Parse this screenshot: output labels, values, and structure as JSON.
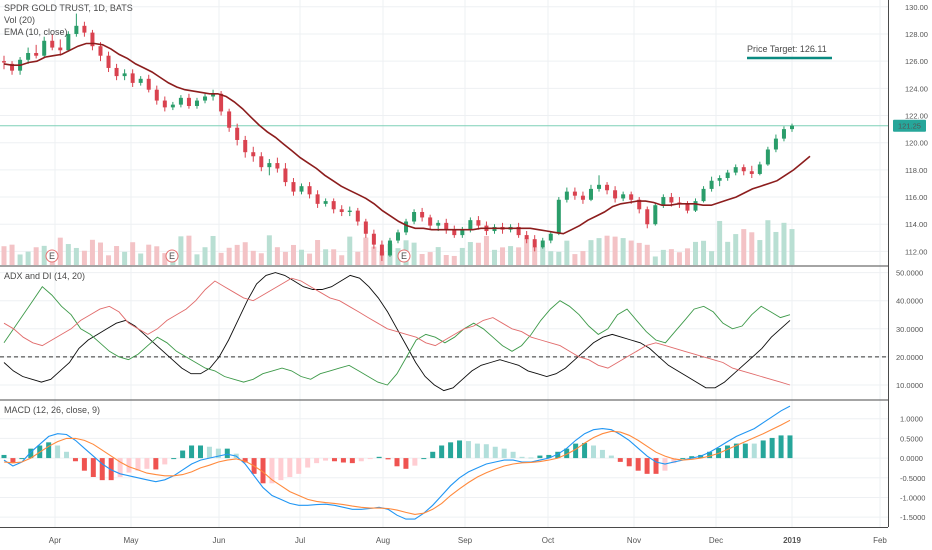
{
  "chart_data": {
    "type": "financial",
    "price_panel": {
      "legend": [
        "SPDR GOLD TRUST, 1D, BATS",
        "Vol (20)",
        "EMA (10, close)"
      ],
      "y_ticks": [
        "130.00",
        "128.00",
        "126.00",
        "124.00",
        "122.00",
        "120.00",
        "118.00",
        "116.00",
        "114.00",
        "112.00"
      ],
      "ylim": [
        111.0,
        130.5
      ],
      "last_price": 121.25,
      "last_price_label": "121.25",
      "price_target_label": "Price Target: 126.11",
      "price_target": 126.11,
      "earnings_marker": "E",
      "earnings_dates": [
        "Apr",
        "May",
        "Aug"
      ],
      "candles_ohlc": [
        [
          126.0,
          126.4,
          125.4,
          125.9
        ],
        [
          125.8,
          126.0,
          125.0,
          125.3
        ],
        [
          125.3,
          126.3,
          125.0,
          126.1
        ],
        [
          126.1,
          127.0,
          125.8,
          126.6
        ],
        [
          126.6,
          127.2,
          126.2,
          126.4
        ],
        [
          126.4,
          127.8,
          126.3,
          127.5
        ],
        [
          127.5,
          128.0,
          126.8,
          127.0
        ],
        [
          127.0,
          127.6,
          126.4,
          126.8
        ],
        [
          126.8,
          128.2,
          126.7,
          128.0
        ],
        [
          128.0,
          129.5,
          127.8,
          128.6
        ],
        [
          128.6,
          128.9,
          127.8,
          128.1
        ],
        [
          128.1,
          128.3,
          126.8,
          127.1
        ],
        [
          127.1,
          127.4,
          126.0,
          126.4
        ],
        [
          126.4,
          126.7,
          125.2,
          125.5
        ],
        [
          125.5,
          125.8,
          124.6,
          124.9
        ],
        [
          124.9,
          125.4,
          124.6,
          125.1
        ],
        [
          125.1,
          125.4,
          124.1,
          124.4
        ],
        [
          124.4,
          124.9,
          124.2,
          124.7
        ],
        [
          124.7,
          125.0,
          123.7,
          123.9
        ],
        [
          123.9,
          124.2,
          122.8,
          123.1
        ],
        [
          123.1,
          123.4,
          122.3,
          122.6
        ],
        [
          122.6,
          123.0,
          122.4,
          122.8
        ],
        [
          122.8,
          123.5,
          122.6,
          123.3
        ],
        [
          123.3,
          123.6,
          122.5,
          122.7
        ],
        [
          122.7,
          123.3,
          122.5,
          123.1
        ],
        [
          123.1,
          123.6,
          122.9,
          123.4
        ],
        [
          123.4,
          123.9,
          123.1,
          123.6
        ],
        [
          123.6,
          123.8,
          122.0,
          122.3
        ],
        [
          122.3,
          122.5,
          120.8,
          121.1
        ],
        [
          121.1,
          121.4,
          119.8,
          120.2
        ],
        [
          120.2,
          120.5,
          118.9,
          119.3
        ],
        [
          119.3,
          119.7,
          118.6,
          119.0
        ],
        [
          119.0,
          119.3,
          117.9,
          118.2
        ],
        [
          118.2,
          118.8,
          117.6,
          118.5
        ],
        [
          118.5,
          118.9,
          117.8,
          118.1
        ],
        [
          118.1,
          118.5,
          116.8,
          117.1
        ],
        [
          117.1,
          117.4,
          116.1,
          116.4
        ],
        [
          116.4,
          117.0,
          116.2,
          116.8
        ],
        [
          116.8,
          117.1,
          115.9,
          116.2
        ],
        [
          116.2,
          116.5,
          115.2,
          115.5
        ],
        [
          115.5,
          115.9,
          115.3,
          115.7
        ],
        [
          115.7,
          115.9,
          114.8,
          115.1
        ],
        [
          115.1,
          115.4,
          114.6,
          114.9
        ],
        [
          114.9,
          115.3,
          114.6,
          115.0
        ],
        [
          115.0,
          115.2,
          113.9,
          114.2
        ],
        [
          114.2,
          114.4,
          113.0,
          113.3
        ],
        [
          113.3,
          113.6,
          112.2,
          112.5
        ],
        [
          112.5,
          112.8,
          111.3,
          111.7
        ],
        [
          111.7,
          113.0,
          111.6,
          112.8
        ],
        [
          112.8,
          113.6,
          112.6,
          113.4
        ],
        [
          113.4,
          114.4,
          113.2,
          114.2
        ],
        [
          114.2,
          115.1,
          114.0,
          114.9
        ],
        [
          114.9,
          115.2,
          114.2,
          114.5
        ],
        [
          114.5,
          114.7,
          113.6,
          113.9
        ],
        [
          113.9,
          114.3,
          113.5,
          114.1
        ],
        [
          114.1,
          114.4,
          113.3,
          113.6
        ],
        [
          113.6,
          113.9,
          113.0,
          113.2
        ],
        [
          113.2,
          113.8,
          113.0,
          113.6
        ],
        [
          113.6,
          114.5,
          113.4,
          114.3
        ],
        [
          114.3,
          114.6,
          113.6,
          113.9
        ],
        [
          113.9,
          114.2,
          113.2,
          113.5
        ],
        [
          113.5,
          114.0,
          113.3,
          113.8
        ],
        [
          113.8,
          114.1,
          113.3,
          113.6
        ],
        [
          113.6,
          114.0,
          113.4,
          113.8
        ],
        [
          113.8,
          114.1,
          113.0,
          113.2
        ],
        [
          113.2,
          113.5,
          112.6,
          112.9
        ],
        [
          112.9,
          113.2,
          112.0,
          112.3
        ],
        [
          112.3,
          113.0,
          112.2,
          112.8
        ],
        [
          112.8,
          113.5,
          112.6,
          113.3
        ],
        [
          113.3,
          116.0,
          113.2,
          115.8
        ],
        [
          115.8,
          116.7,
          115.6,
          116.4
        ],
        [
          116.4,
          116.7,
          115.8,
          116.1
        ],
        [
          116.1,
          116.4,
          115.5,
          115.8
        ],
        [
          115.8,
          116.9,
          115.7,
          116.6
        ],
        [
          116.6,
          117.6,
          116.4,
          116.9
        ],
        [
          116.9,
          117.1,
          116.2,
          116.5
        ],
        [
          116.5,
          116.8,
          115.6,
          115.9
        ],
        [
          115.9,
          116.4,
          115.7,
          116.2
        ],
        [
          116.2,
          116.4,
          115.5,
          115.8
        ],
        [
          115.8,
          116.0,
          114.8,
          115.1
        ],
        [
          115.1,
          115.3,
          113.7,
          114.0
        ],
        [
          114.0,
          115.6,
          113.9,
          115.4
        ],
        [
          115.4,
          116.2,
          115.2,
          116.0
        ],
        [
          116.0,
          116.3,
          115.3,
          115.6
        ],
        [
          115.6,
          116.0,
          115.2,
          115.5
        ],
        [
          115.5,
          115.7,
          114.8,
          115.0
        ],
        [
          115.0,
          115.9,
          114.9,
          115.7
        ],
        [
          115.7,
          116.8,
          115.6,
          116.6
        ],
        [
          116.6,
          117.5,
          116.4,
          117.2
        ],
        [
          117.2,
          117.6,
          116.8,
          117.4
        ],
        [
          117.4,
          118.0,
          117.2,
          117.8
        ],
        [
          117.8,
          118.4,
          117.6,
          118.2
        ],
        [
          118.2,
          118.4,
          117.6,
          117.9
        ],
        [
          117.9,
          118.3,
          117.4,
          117.7
        ],
        [
          117.7,
          118.6,
          117.6,
          118.4
        ],
        [
          118.4,
          119.7,
          118.3,
          119.5
        ],
        [
          119.5,
          120.6,
          119.3,
          120.3
        ],
        [
          120.3,
          121.2,
          120.1,
          121.0
        ],
        [
          121.0,
          121.4,
          120.8,
          121.25
        ]
      ],
      "ema_10": [
        125.8,
        125.7,
        125.7,
        125.9,
        126.0,
        126.3,
        126.4,
        126.5,
        126.8,
        127.1,
        127.3,
        127.3,
        127.2,
        126.9,
        126.5,
        126.2,
        125.8,
        125.5,
        125.2,
        124.8,
        124.4,
        124.1,
        123.9,
        123.8,
        123.7,
        123.6,
        123.6,
        123.4,
        123.0,
        122.5,
        121.9,
        121.3,
        120.8,
        120.4,
        119.9,
        119.4,
        118.9,
        118.5,
        118.1,
        117.6,
        117.2,
        116.8,
        116.5,
        116.2,
        115.9,
        115.5,
        115.0,
        114.6,
        114.2,
        113.9,
        113.7,
        113.7,
        113.6,
        113.6,
        113.6,
        113.6,
        113.6,
        113.6,
        113.7,
        113.7,
        113.7,
        113.7,
        113.7,
        113.7,
        113.7,
        113.6,
        113.5,
        113.4,
        113.3,
        113.6,
        113.9,
        114.3,
        114.6,
        114.9,
        115.3,
        115.5,
        115.6,
        115.7,
        115.7,
        115.6,
        115.4,
        115.4,
        115.5,
        115.5,
        115.5,
        115.4,
        115.4,
        115.6,
        115.8,
        116.0,
        116.3,
        116.6,
        116.8,
        117.0,
        117.2,
        117.6,
        118.0,
        118.5,
        119.0
      ]
    },
    "adx_panel": {
      "title": "ADX and DI (14, 20)",
      "y_ticks": [
        "50.0000",
        "40.0000",
        "30.0000",
        "20.0000",
        "10.0000"
      ],
      "ylim": [
        5,
        52
      ],
      "threshold": 20,
      "series": [
        {
          "color": "#0d0d0d",
          "values": [
            18,
            15,
            13,
            12,
            11,
            12,
            15,
            18,
            23,
            26,
            28,
            30,
            32,
            33,
            31,
            28,
            25,
            22,
            19,
            16,
            14,
            14,
            16,
            20,
            26,
            33,
            40,
            46,
            49,
            50,
            49,
            47,
            45,
            44,
            44,
            45,
            47,
            49,
            48,
            45,
            41,
            36,
            30,
            24,
            18,
            13,
            10,
            8,
            9,
            12,
            15,
            17,
            18,
            19,
            18,
            17,
            15,
            14,
            13,
            14,
            16,
            19,
            22,
            25,
            27,
            28,
            27,
            26,
            25,
            23,
            20,
            17,
            15,
            13,
            11,
            9,
            9,
            11,
            14,
            17,
            20,
            23,
            27,
            30,
            33
          ]
        },
        {
          "color": "#3e9a4a",
          "values": [
            25,
            30,
            35,
            40,
            45,
            42,
            38,
            35,
            30,
            28,
            25,
            22,
            20,
            19,
            21,
            24,
            27,
            25,
            22,
            20,
            18,
            16,
            15,
            13,
            12,
            11,
            12,
            14,
            15,
            16,
            15,
            13,
            12,
            14,
            15,
            16,
            17,
            15,
            13,
            11,
            10,
            14,
            20,
            26,
            28,
            27,
            25,
            27,
            30,
            32,
            30,
            27,
            24,
            22,
            24,
            28,
            33,
            37,
            40,
            38,
            35,
            31,
            28,
            30,
            35,
            37,
            33,
            29,
            26,
            25,
            29,
            33,
            37,
            38,
            36,
            32,
            30,
            31,
            35,
            38,
            36,
            34,
            35
          ]
        },
        {
          "color": "#e16c6c",
          "values": [
            32,
            30,
            27,
            25,
            24,
            26,
            28,
            30,
            33,
            35,
            37,
            38,
            36,
            32,
            30,
            28,
            30,
            33,
            35,
            37,
            40,
            44,
            47,
            45,
            43,
            41,
            40,
            42,
            44,
            46,
            48,
            47,
            45,
            43,
            41,
            40,
            38,
            36,
            34,
            32,
            30,
            29,
            28,
            27,
            25,
            24,
            26,
            28,
            30,
            31,
            33,
            34,
            32,
            30,
            29,
            27,
            26,
            25,
            24,
            22,
            20,
            19,
            17,
            16,
            18,
            20,
            22,
            24,
            25,
            24,
            23,
            22,
            21,
            20,
            19,
            18,
            16,
            15,
            14,
            13,
            12,
            11,
            10
          ]
        }
      ]
    },
    "macd_panel": {
      "title": "MACD (12, 26, close, 9)",
      "y_ticks": [
        "1.0000",
        "0.5000",
        "0.0000",
        "-0.5000",
        "-1.0000",
        "-1.5000"
      ],
      "ylim": [
        -1.75,
        1.45
      ],
      "series": [
        {
          "name": "MACD",
          "color": "#2196f3",
          "values": [
            -0.05,
            -0.2,
            -0.1,
            0.15,
            0.35,
            0.55,
            0.62,
            0.6,
            0.45,
            0.25,
            0.05,
            -0.15,
            -0.3,
            -0.4,
            -0.45,
            -0.5,
            -0.55,
            -0.6,
            -0.55,
            -0.45,
            -0.3,
            -0.15,
            -0.05,
            0.0,
            0.05,
            0.1,
            0.05,
            -0.15,
            -0.45,
            -0.75,
            -0.95,
            -1.05,
            -1.15,
            -1.2,
            -1.2,
            -1.18,
            -1.17,
            -1.2,
            -1.25,
            -1.3,
            -1.3,
            -1.28,
            -1.25,
            -1.3,
            -1.45,
            -1.55,
            -1.55,
            -1.4,
            -1.2,
            -0.95,
            -0.7,
            -0.5,
            -0.35,
            -0.25,
            -0.15,
            -0.1,
            -0.05,
            -0.05,
            -0.1,
            -0.1,
            -0.05,
            0.0,
            0.1,
            0.25,
            0.45,
            0.62,
            0.72,
            0.75,
            0.72,
            0.6,
            0.45,
            0.25,
            0.05,
            -0.1,
            -0.15,
            -0.1,
            -0.05,
            0.0,
            0.05,
            0.15,
            0.28,
            0.42,
            0.55,
            0.65,
            0.75,
            0.9,
            1.05,
            1.2,
            1.32
          ]
        },
        {
          "name": "Signal",
          "color": "#ff8a3d",
          "values": [
            -0.1,
            -0.12,
            -0.1,
            0.0,
            0.15,
            0.3,
            0.42,
            0.5,
            0.5,
            0.45,
            0.35,
            0.2,
            0.05,
            -0.1,
            -0.22,
            -0.3,
            -0.38,
            -0.42,
            -0.45,
            -0.45,
            -0.42,
            -0.35,
            -0.25,
            -0.18,
            -0.1,
            -0.05,
            -0.02,
            -0.08,
            -0.2,
            -0.35,
            -0.55,
            -0.7,
            -0.85,
            -0.95,
            -1.05,
            -1.1,
            -1.13,
            -1.15,
            -1.18,
            -1.22,
            -1.25,
            -1.27,
            -1.27,
            -1.28,
            -1.32,
            -1.38,
            -1.43,
            -1.4,
            -1.3,
            -1.15,
            -0.95,
            -0.78,
            -0.62,
            -0.48,
            -0.37,
            -0.28,
            -0.2,
            -0.15,
            -0.12,
            -0.11,
            -0.09,
            -0.05,
            0.0,
            0.1,
            0.22,
            0.38,
            0.52,
            0.62,
            0.68,
            0.66,
            0.58,
            0.45,
            0.3,
            0.15,
            0.05,
            -0.02,
            -0.05,
            -0.03,
            0.0,
            0.05,
            0.12,
            0.22,
            0.32,
            0.42,
            0.52,
            0.62,
            0.73,
            0.84,
            0.96
          ]
        }
      ]
    },
    "x_ticks": [
      "Apr",
      "May",
      "Jun",
      "Jul",
      "Aug",
      "Sep",
      "Oct",
      "Nov",
      "Dec",
      "2019",
      "Feb"
    ]
  }
}
